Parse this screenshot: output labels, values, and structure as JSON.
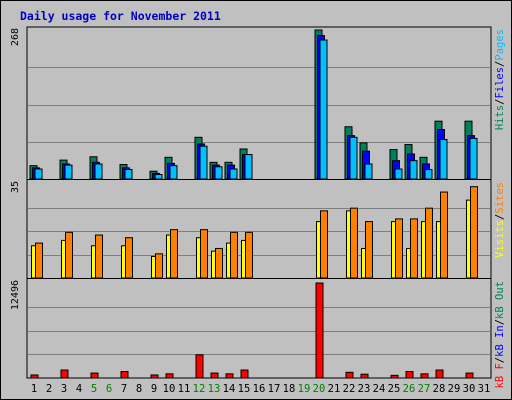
{
  "chart_data": {
    "type": "bar",
    "title": "Daily usage for November 2011",
    "categories": [
      "1",
      "2",
      "3",
      "4",
      "5",
      "6",
      "7",
      "8",
      "9",
      "10",
      "11",
      "12",
      "13",
      "14",
      "15",
      "16",
      "17",
      "18",
      "19",
      "20",
      "21",
      "22",
      "23",
      "24",
      "25",
      "26",
      "27",
      "28",
      "29",
      "30",
      "31"
    ],
    "weekend_days": [
      "5",
      "6",
      "12",
      "13",
      "19",
      "20",
      "26",
      "27"
    ],
    "colors": {
      "frame": "#000000",
      "background": "#c0c0c0",
      "gridline": "#808080",
      "title": "#0000c0",
      "weekend_label": "#008000",
      "hits": "#00805c",
      "files": "#0000ff",
      "pages": "#00c0ff",
      "visits": "#ffff00",
      "sites": "#ff8000",
      "kbytes": "#ff0000"
    },
    "panels": [
      {
        "id": "hits-files-pages",
        "max_label": "268",
        "ylim": [
          0,
          268
        ],
        "legend": [
          {
            "text": "Hits",
            "color": "#00805c"
          },
          {
            "text": "/",
            "color": "#000000"
          },
          {
            "text": "Files",
            "color": "#0000ff"
          },
          {
            "text": "/",
            "color": "#000000"
          },
          {
            "text": "Pages",
            "color": "#00c0ff"
          }
        ],
        "series": [
          {
            "name": "Hits",
            "color": "#00805c",
            "values": [
              24,
              0,
              34,
              0,
              40,
              0,
              26,
              0,
              14,
              39,
              0,
              75,
              30,
              30,
              54,
              0,
              0,
              0,
              0,
              268,
              0,
              94,
              65,
              0,
              53,
              62,
              39,
              104,
              0,
              104,
              0
            ]
          },
          {
            "name": "Files",
            "color": "#0000ff",
            "values": [
              20,
              0,
              27,
              0,
              30,
              0,
              20,
              0,
              10,
              28,
              0,
              63,
              25,
              25,
              44,
              0,
              0,
              0,
              0,
              258,
              0,
              78,
              50,
              0,
              33,
              45,
              27,
              89,
              0,
              78,
              0
            ]
          },
          {
            "name": "Pages",
            "color": "#00c0ff",
            "values": [
              18,
              0,
              25,
              0,
              27,
              0,
              17,
              0,
              8,
              24,
              0,
              59,
              22,
              18,
              44,
              0,
              0,
              0,
              0,
              250,
              0,
              75,
              27,
              0,
              18,
              33,
              17,
              71,
              0,
              73,
              0
            ]
          }
        ]
      },
      {
        "id": "visits-sites",
        "max_label": "35",
        "ylim": [
          0,
          35
        ],
        "legend": [
          {
            "text": "Visits",
            "color": "#ffff00"
          },
          {
            "text": "/",
            "color": "#000000"
          },
          {
            "text": "Sites",
            "color": "#ff8000"
          }
        ],
        "series": [
          {
            "name": "Visits",
            "color": "#ffff00",
            "values": [
              12,
              0,
              14,
              0,
              12,
              0,
              12,
              0,
              8,
              16,
              0,
              15,
              10,
              13,
              14,
              0,
              0,
              0,
              0,
              21,
              0,
              25,
              11,
              0,
              21,
              11,
              21,
              21,
              0,
              29,
              0
            ]
          },
          {
            "name": "Sites",
            "color": "#ff8000",
            "values": [
              13,
              0,
              17,
              0,
              16,
              0,
              15,
              0,
              9,
              18,
              0,
              18,
              11,
              17,
              17,
              0,
              0,
              0,
              0,
              25,
              0,
              26,
              21,
              0,
              22,
              22,
              26,
              32,
              0,
              34,
              0
            ]
          }
        ]
      },
      {
        "id": "kbytes",
        "max_label": "12496",
        "ylim": [
          0,
          12496
        ],
        "legend": [
          {
            "text": "kB F",
            "color": "#ff0000"
          },
          {
            "text": "/",
            "color": "#000000"
          },
          {
            "text": "kB In",
            "color": "#0000ff"
          },
          {
            "text": "/",
            "color": "#000000"
          },
          {
            "text": "kB Out",
            "color": "#00805c"
          }
        ],
        "series": [
          {
            "name": "kB F",
            "color": "#ff0000",
            "values": [
              400,
              0,
              1050,
              0,
              650,
              0,
              850,
              0,
              400,
              550,
              0,
              3050,
              650,
              550,
              1050,
              0,
              0,
              0,
              0,
              12496,
              0,
              750,
              500,
              0,
              350,
              850,
              550,
              1050,
              0,
              650,
              0
            ]
          }
        ]
      }
    ]
  }
}
